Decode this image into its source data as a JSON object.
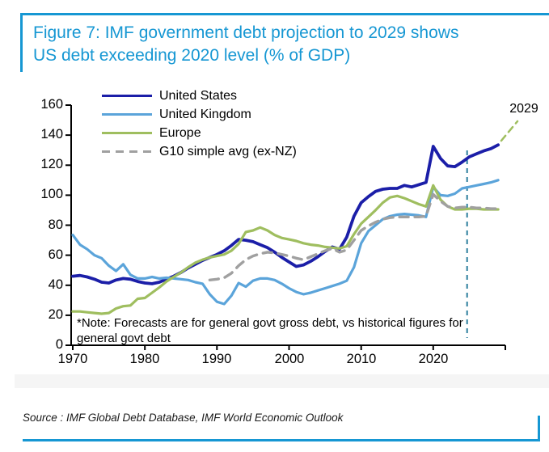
{
  "header": {
    "title_line1": "Figure 7: IMF government debt projection to 2029 shows",
    "title_line2": "US debt exceeding 2020 level (% of GDP)"
  },
  "colors": {
    "accent_blue": "#1697d3",
    "axis": "#000000",
    "forecast_divider": "#2e7f9e",
    "band": "#f5f5f5"
  },
  "chart_data": {
    "type": "line",
    "title": "Figure 7: IMF government debt projection to 2029 shows US debt exceeding 2020 level (% of GDP)",
    "xlabel": "",
    "ylabel": "",
    "x_start": 1970,
    "x_end": 2029,
    "ylim": [
      0,
      160
    ],
    "yticks": [
      0,
      20,
      40,
      60,
      80,
      100,
      120,
      140,
      160
    ],
    "xticks": [
      1970,
      1980,
      1990,
      2000,
      2010,
      2020
    ],
    "grid": false,
    "legend_position": "top-left",
    "series": [
      {
        "name": "United States",
        "color": "#1b1ea8",
        "style": "solid",
        "line_width": 3.8,
        "values": [
          46,
          46.5,
          45.5,
          44,
          42,
          41.5,
          43.5,
          44.5,
          44,
          42.5,
          41.5,
          41,
          42,
          44,
          46,
          48.5,
          51.5,
          54,
          56.5,
          58.5,
          60.5,
          63,
          66.5,
          70.5,
          70,
          69,
          67,
          65,
          62,
          58.5,
          55.5,
          52.5,
          53.5,
          56,
          59,
          62.5,
          65.5,
          64,
          72,
          86,
          95,
          99,
          102.5,
          104,
          104.5,
          104.5,
          106.5,
          105.5,
          107,
          108.5,
          132.5,
          124.5,
          119.5,
          119,
          122,
          125.5,
          127.5,
          129.5,
          131,
          133.5
        ]
      },
      {
        "name": "United Kingdom",
        "color": "#5ba4da",
        "style": "solid",
        "line_width": 3.2,
        "values": [
          73.5,
          67,
          64,
          60,
          58,
          53,
          49.5,
          54,
          47,
          44.5,
          44.5,
          45.5,
          44.5,
          45,
          44.5,
          44,
          43.5,
          42,
          41,
          34,
          29,
          27.5,
          33,
          41.5,
          39,
          43,
          44.5,
          44.5,
          43.5,
          41,
          38,
          35.5,
          34,
          35,
          36.5,
          38,
          39.5,
          41,
          43,
          52,
          68,
          76,
          80,
          84,
          86,
          87,
          87.5,
          87,
          86.5,
          85.5,
          105.5,
          100,
          99.5,
          101,
          104.5,
          105.5,
          106.5,
          107.5,
          108.5,
          110
        ]
      },
      {
        "name": "Europe",
        "color": "#9fbe5f",
        "style": "solid",
        "line_width": 3.2,
        "values": [
          22.5,
          22.5,
          22,
          21.5,
          21,
          21.5,
          24.5,
          26,
          26.5,
          31,
          31.5,
          35,
          38.5,
          42.5,
          45.5,
          48.5,
          52,
          55,
          57,
          58.5,
          59.5,
          60.5,
          63,
          67.5,
          75.5,
          76.5,
          78.5,
          76.5,
          73.5,
          71.5,
          70.5,
          69.5,
          68,
          67,
          66.5,
          65.5,
          65,
          64.5,
          66,
          74,
          81,
          85.5,
          90,
          95,
          98.5,
          99.5,
          98,
          96,
          94,
          92.5,
          106.5,
          97,
          92.5,
          90.5,
          90.5,
          91,
          91,
          90.5,
          90.5,
          90.5
        ]
      },
      {
        "name": "G10 simple avg (ex-NZ)",
        "color": "#a0a0a0",
        "style": "dashed",
        "line_width": 3.4,
        "values": [
          null,
          null,
          null,
          null,
          null,
          null,
          null,
          null,
          null,
          null,
          null,
          null,
          null,
          null,
          null,
          null,
          null,
          null,
          null,
          43.5,
          44,
          45,
          48,
          53,
          57,
          59.5,
          61,
          62,
          61.5,
          60.5,
          59.5,
          58,
          57,
          59,
          61,
          63,
          64.5,
          62,
          63.5,
          70,
          76.5,
          79.5,
          82,
          84,
          85,
          85.5,
          85.5,
          85.5,
          85.5,
          86,
          100.5,
          96,
          92.5,
          91.5,
          92,
          92,
          91.5,
          91.5,
          91,
          91
        ]
      }
    ],
    "annotations": {
      "end_label": "2029",
      "forecast_divider_year": 2024.7,
      "note_line1": "*Note: Forecasts are for general govt gross debt, vs historical figures for",
      "note_line2": "general govt debt"
    }
  },
  "footer": {
    "source": "Source : IMF Global Debt Database, IMF World Economic Outlook"
  }
}
